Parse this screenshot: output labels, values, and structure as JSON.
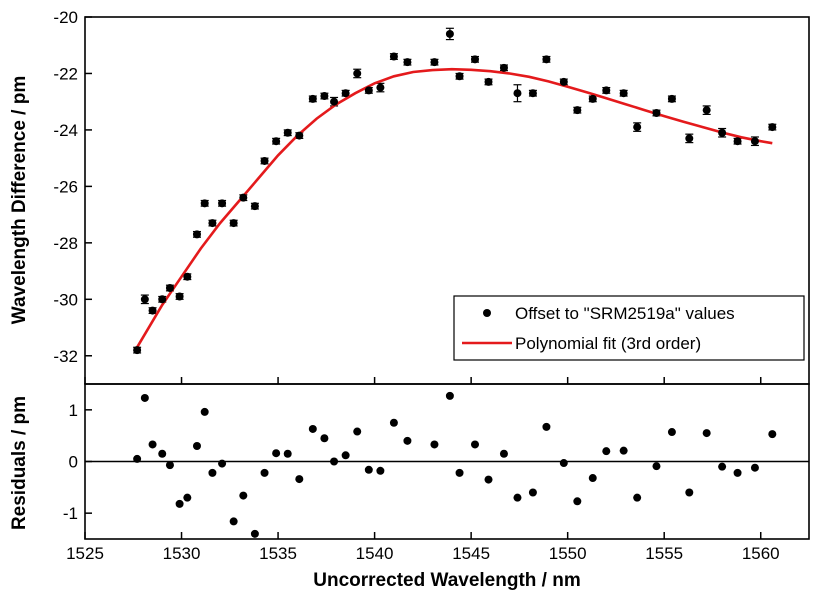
{
  "chart_data": [
    {
      "type": "scatter",
      "panel": "main",
      "xlabel": "",
      "ylabel": "Wavelength Difference / pm",
      "xlim": [
        1525,
        1562.5
      ],
      "ylim": [
        -33,
        -20
      ],
      "yticks": [
        -32,
        -30,
        -28,
        -26,
        -24,
        -22,
        -20
      ],
      "legend_position": "bottom-right",
      "series": [
        {
          "name": "Offset to \"SRM2519a\" values",
          "kind": "points-with-error-bars",
          "color": "#000000",
          "points": [
            [
              1527.7,
              -31.8,
              0.1
            ],
            [
              1528.1,
              -30.0,
              0.15
            ],
            [
              1528.5,
              -30.4,
              0.1
            ],
            [
              1529.0,
              -30.0,
              0.1
            ],
            [
              1529.4,
              -29.6,
              0.1
            ],
            [
              1529.9,
              -29.9,
              0.1
            ],
            [
              1530.3,
              -29.2,
              0.1
            ],
            [
              1530.8,
              -27.7,
              0.1
            ],
            [
              1531.2,
              -26.6,
              0.1
            ],
            [
              1531.6,
              -27.3,
              0.1
            ],
            [
              1532.1,
              -26.6,
              0.1
            ],
            [
              1532.7,
              -27.3,
              0.1
            ],
            [
              1533.2,
              -26.4,
              0.1
            ],
            [
              1533.8,
              -26.7,
              0.1
            ],
            [
              1534.3,
              -25.1,
              0.1
            ],
            [
              1534.9,
              -24.4,
              0.1
            ],
            [
              1535.5,
              -24.1,
              0.1
            ],
            [
              1536.1,
              -24.2,
              0.1
            ],
            [
              1536.8,
              -22.9,
              0.1
            ],
            [
              1537.4,
              -22.8,
              0.1
            ],
            [
              1537.9,
              -23.0,
              0.15
            ],
            [
              1538.5,
              -22.7,
              0.1
            ],
            [
              1539.1,
              -22.0,
              0.15
            ],
            [
              1539.7,
              -22.6,
              0.1
            ],
            [
              1540.3,
              -22.5,
              0.15
            ],
            [
              1541.0,
              -21.4,
              0.1
            ],
            [
              1541.7,
              -21.6,
              0.1
            ],
            [
              1543.1,
              -21.6,
              0.1
            ],
            [
              1543.9,
              -20.6,
              0.2
            ],
            [
              1544.4,
              -22.1,
              0.1
            ],
            [
              1545.2,
              -21.5,
              0.1
            ],
            [
              1545.9,
              -22.3,
              0.1
            ],
            [
              1546.7,
              -21.8,
              0.1
            ],
            [
              1547.4,
              -22.7,
              0.3
            ],
            [
              1548.2,
              -22.7,
              0.1
            ],
            [
              1548.9,
              -21.5,
              0.1
            ],
            [
              1549.8,
              -22.3,
              0.1
            ],
            [
              1550.5,
              -23.3,
              0.1
            ],
            [
              1551.3,
              -22.9,
              0.1
            ],
            [
              1552.0,
              -22.6,
              0.1
            ],
            [
              1552.9,
              -22.7,
              0.1
            ],
            [
              1553.6,
              -23.9,
              0.15
            ],
            [
              1554.6,
              -23.4,
              0.1
            ],
            [
              1555.4,
              -22.9,
              0.1
            ],
            [
              1556.3,
              -24.3,
              0.15
            ],
            [
              1557.2,
              -23.3,
              0.15
            ],
            [
              1558.0,
              -24.1,
              0.15
            ],
            [
              1558.8,
              -24.4,
              0.1
            ],
            [
              1559.7,
              -24.4,
              0.15
            ],
            [
              1560.6,
              -23.9,
              0.1
            ]
          ]
        },
        {
          "name": "Polynomial fit (3rd order)",
          "kind": "line",
          "color": "#e41a1c",
          "points": [
            [
              1527.7,
              -31.7
            ],
            [
              1529.0,
              -30.2
            ],
            [
              1530.0,
              -29.2
            ],
            [
              1531.0,
              -28.2
            ],
            [
              1532.0,
              -27.3
            ],
            [
              1533.0,
              -26.5
            ],
            [
              1534.0,
              -25.7
            ],
            [
              1535.0,
              -24.9
            ],
            [
              1536.0,
              -24.2
            ],
            [
              1537.0,
              -23.6
            ],
            [
              1538.0,
              -23.1
            ],
            [
              1539.0,
              -22.7
            ],
            [
              1540.0,
              -22.35
            ],
            [
              1541.0,
              -22.1
            ],
            [
              1542.0,
              -21.95
            ],
            [
              1543.0,
              -21.88
            ],
            [
              1544.0,
              -21.85
            ],
            [
              1545.0,
              -21.87
            ],
            [
              1546.0,
              -21.92
            ],
            [
              1547.0,
              -22.0
            ],
            [
              1548.0,
              -22.12
            ],
            [
              1549.0,
              -22.28
            ],
            [
              1550.0,
              -22.47
            ],
            [
              1551.0,
              -22.67
            ],
            [
              1552.0,
              -22.88
            ],
            [
              1553.0,
              -23.09
            ],
            [
              1554.0,
              -23.3
            ],
            [
              1555.0,
              -23.51
            ],
            [
              1556.0,
              -23.71
            ],
            [
              1557.0,
              -23.9
            ],
            [
              1558.0,
              -24.09
            ],
            [
              1559.0,
              -24.26
            ],
            [
              1560.0,
              -24.4
            ],
            [
              1560.6,
              -24.47
            ]
          ]
        }
      ]
    },
    {
      "type": "scatter",
      "panel": "residuals",
      "xlabel": "Uncorrected Wavelength / nm",
      "ylabel": "Residuals / pm",
      "xlim": [
        1525,
        1562.5
      ],
      "ylim": [
        -1.5,
        1.5
      ],
      "xticks": [
        1525,
        1530,
        1535,
        1540,
        1545,
        1550,
        1555,
        1560
      ],
      "yticks": [
        -1,
        0,
        1
      ],
      "reference_line": 0,
      "series": [
        {
          "kind": "points",
          "color": "#000000",
          "points": [
            [
              1527.7,
              0.05
            ],
            [
              1528.1,
              1.23
            ],
            [
              1528.5,
              0.33
            ],
            [
              1529.0,
              0.15
            ],
            [
              1529.4,
              -0.07
            ],
            [
              1529.9,
              -0.82
            ],
            [
              1530.3,
              -0.7
            ],
            [
              1530.8,
              0.3
            ],
            [
              1531.2,
              0.96
            ],
            [
              1531.6,
              -0.22
            ],
            [
              1532.1,
              -0.04
            ],
            [
              1532.7,
              -1.16
            ],
            [
              1533.2,
              -0.66
            ],
            [
              1533.8,
              -1.4
            ],
            [
              1534.3,
              -0.22
            ],
            [
              1534.9,
              0.16
            ],
            [
              1535.5,
              0.15
            ],
            [
              1536.1,
              -0.34
            ],
            [
              1536.8,
              0.63
            ],
            [
              1537.4,
              0.45
            ],
            [
              1537.9,
              0.0
            ],
            [
              1538.5,
              0.12
            ],
            [
              1539.1,
              0.58
            ],
            [
              1539.7,
              -0.16
            ],
            [
              1540.3,
              -0.18
            ],
            [
              1541.0,
              0.75
            ],
            [
              1541.7,
              0.4
            ],
            [
              1543.1,
              0.33
            ],
            [
              1543.9,
              1.27
            ],
            [
              1544.4,
              -0.22
            ],
            [
              1545.2,
              0.33
            ],
            [
              1545.9,
              -0.35
            ],
            [
              1546.7,
              0.15
            ],
            [
              1547.4,
              -0.7
            ],
            [
              1548.2,
              -0.6
            ],
            [
              1548.9,
              0.67
            ],
            [
              1549.8,
              -0.03
            ],
            [
              1550.5,
              -0.77
            ],
            [
              1551.3,
              -0.32
            ],
            [
              1552.0,
              0.2
            ],
            [
              1552.9,
              0.21
            ],
            [
              1553.6,
              -0.7
            ],
            [
              1554.6,
              -0.09
            ],
            [
              1555.4,
              0.57
            ],
            [
              1556.3,
              -0.6
            ],
            [
              1557.2,
              0.55
            ],
            [
              1558.0,
              -0.1
            ],
            [
              1558.8,
              -0.22
            ],
            [
              1559.7,
              -0.12
            ],
            [
              1560.6,
              0.53
            ]
          ]
        }
      ]
    }
  ]
}
